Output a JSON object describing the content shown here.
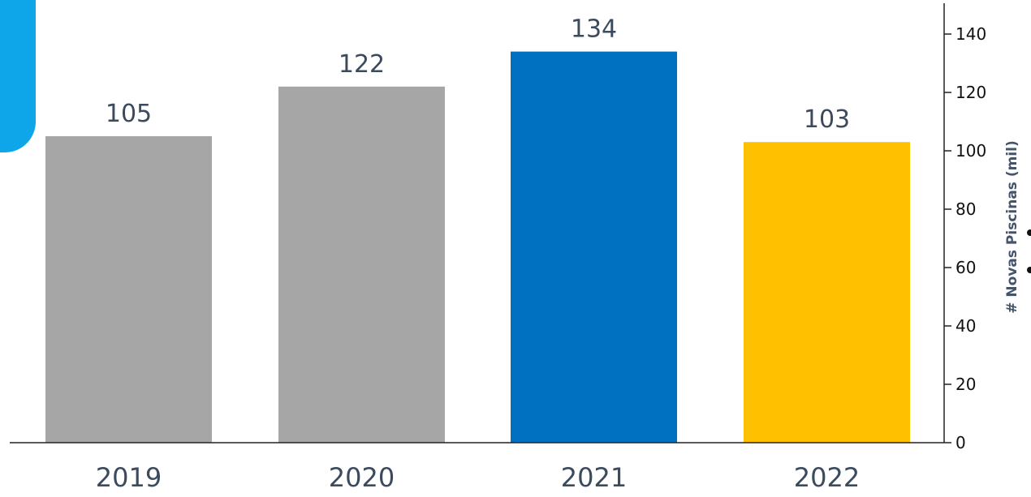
{
  "colors": {
    "gray_bar": "#a6a6a6",
    "blue_bar": "#0070c0",
    "yellow_bar": "#ffc000",
    "axis": "#222222",
    "label_text": "#3c4a5e",
    "axis_title": "#44546a",
    "decor_tab": "#0ea5e9"
  },
  "chart_data": {
    "type": "bar",
    "categories": [
      "2019",
      "2020",
      "2021",
      "2022"
    ],
    "values": [
      105,
      122,
      134,
      103
    ],
    "data_labels": [
      "105",
      "122",
      "134",
      "103"
    ],
    "bar_colors": [
      "#a6a6a6",
      "#a6a6a6",
      "#0070c0",
      "#ffc000"
    ],
    "ylabel": "# Novas Piscinas (mil)",
    "ylim": [
      0,
      150
    ],
    "yticks": [
      0,
      20,
      40,
      60,
      80,
      100,
      120,
      140
    ],
    "yaxis_side": "right",
    "grid": false,
    "legend": "none"
  }
}
